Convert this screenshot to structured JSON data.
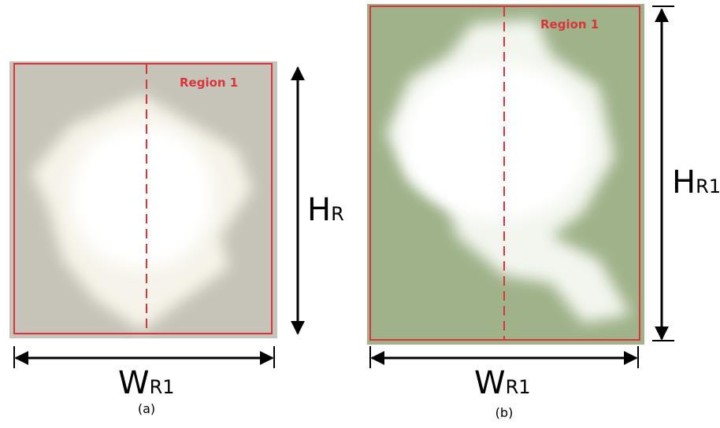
{
  "panels": [
    {
      "region_label": "Region 1",
      "height_label": {
        "main": "H",
        "sub": "R"
      },
      "width_label": {
        "main": "W",
        "sub": "R1"
      },
      "caption": "(a)"
    },
    {
      "region_label": "Region 1",
      "height_label": {
        "main": "H",
        "sub": "R1"
      },
      "width_label": {
        "main": "W",
        "sub": "R1"
      },
      "caption": "(b)"
    }
  ]
}
